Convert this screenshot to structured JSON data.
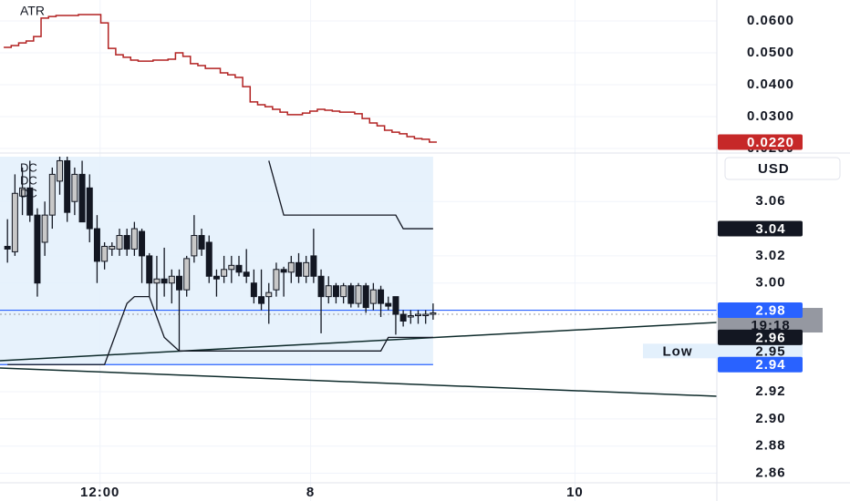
{
  "chart_data": [
    {
      "type": "step-line",
      "title": "ATR",
      "x": [
        0,
        1,
        2,
        3,
        4,
        5,
        6,
        7,
        8,
        9,
        10,
        11,
        12,
        13,
        14,
        15,
        16,
        17,
        18,
        19,
        20,
        21,
        22,
        23,
        24,
        25,
        26,
        27,
        28,
        29,
        30,
        31,
        32,
        33,
        34,
        35,
        36,
        37,
        38,
        39,
        40,
        41,
        42,
        43,
        44,
        45,
        46,
        47,
        48,
        49,
        50,
        51,
        52,
        53,
        54,
        55,
        56,
        57
      ],
      "series": [
        {
          "name": "ATR",
          "color": "#b22222",
          "values": [
            0.0517,
            0.0523,
            0.0531,
            0.0537,
            0.0551,
            0.0609,
            0.0614,
            0.0617,
            0.0617,
            0.0617,
            0.062,
            0.062,
            0.062,
            0.0594,
            0.0514,
            0.0494,
            0.0486,
            0.0477,
            0.0474,
            0.0474,
            0.0477,
            0.0477,
            0.048,
            0.05,
            0.0489,
            0.0466,
            0.046,
            0.0451,
            0.0451,
            0.0437,
            0.0431,
            0.0423,
            0.0394,
            0.0346,
            0.0337,
            0.0331,
            0.0323,
            0.0314,
            0.0306,
            0.0306,
            0.0311,
            0.0317,
            0.0323,
            0.032,
            0.0317,
            0.0314,
            0.0314,
            0.0309,
            0.0294,
            0.028,
            0.0271,
            0.0257,
            0.0251,
            0.0246,
            0.0237,
            0.0231,
            0.0229,
            0.022
          ]
        }
      ],
      "last_value_label": "0.0220",
      "label_color": "#c62828",
      "xlim": [
        -1,
        95
      ],
      "ylim": [
        0.01943,
        0.06657
      ],
      "yticks": [
        {
          "value": 0.06,
          "label": "0.0600"
        },
        {
          "value": 0.05,
          "label": "0.0500"
        },
        {
          "value": 0.04,
          "label": "0.0400"
        },
        {
          "value": 0.03,
          "label": "0.0300"
        },
        {
          "value": 0.02,
          "label": "0.0200"
        }
      ]
    },
    {
      "type": "candlestick",
      "x": [
        0,
        1,
        2,
        3,
        4,
        5,
        6,
        7,
        8,
        9,
        10,
        11,
        12,
        13,
        14,
        15,
        16,
        17,
        18,
        19,
        20,
        21,
        22,
        23,
        24,
        25,
        26,
        27,
        28,
        29,
        30,
        31,
        32,
        33,
        34,
        35,
        36,
        37,
        38,
        39,
        40,
        41,
        42,
        43,
        44,
        45,
        46,
        47,
        48,
        49,
        50,
        51,
        52,
        53,
        54,
        55,
        56,
        57
      ],
      "open": [
        3.027,
        3.023,
        3.064,
        3.07,
        3.05,
        3.03,
        3.05,
        3.075,
        3.09,
        3.06,
        3.08,
        3.07,
        3.04,
        3.016,
        3.025,
        3.025,
        3.035,
        3.025,
        3.038,
        3.02,
        3.0,
        3.003,
        3.0,
        3.005,
        2.995,
        3.02,
        3.035,
        3.03,
        3.005,
        3.005,
        3.01,
        3.013,
        3.008,
        3.0,
        2.99,
        2.99,
        2.995,
        3.01,
        3.008,
        3.015,
        3.005,
        3.02,
        3.005,
        2.99,
        2.998,
        2.99,
        2.998,
        2.985,
        2.998,
        2.985,
        2.995,
        2.985,
        2.99,
        2.977,
        2.975,
        2.976,
        2.976,
        2.977
      ],
      "high": [
        3.047,
        3.08,
        3.085,
        3.09,
        3.055,
        3.06,
        3.085,
        3.1,
        3.1,
        3.085,
        3.09,
        3.08,
        3.05,
        3.03,
        3.03,
        3.04,
        3.04,
        3.045,
        3.04,
        3.022,
        3.02,
        3.026,
        3.01,
        3.01,
        3.02,
        3.05,
        3.04,
        3.035,
        3.01,
        3.02,
        3.02,
        3.02,
        3.025,
        3.01,
        3.01,
        3.0,
        3.015,
        3.012,
        3.02,
        3.022,
        3.02,
        3.04,
        3.01,
        3.005,
        3.0,
        3.0,
        3.0,
        3.0,
        3.0,
        3.0,
        2.998,
        2.99,
        2.99,
        2.98,
        2.98,
        2.98,
        2.98,
        2.985
      ],
      "low": [
        3.015,
        3.02,
        3.05,
        3.045,
        2.99,
        3.02,
        3.04,
        3.065,
        3.045,
        3.05,
        3.045,
        3.03,
        3.0,
        3.01,
        3.02,
        3.02,
        3.02,
        3.02,
        3.0,
        2.99,
        2.98,
        2.99,
        2.985,
        2.95,
        2.99,
        3.015,
        3.02,
        3.0,
        2.99,
        3.0,
        3.0,
        3.005,
        3.0,
        2.985,
        2.98,
        2.97,
        2.99,
        2.99,
        3.0,
        3.0,
        3.0,
        3.0,
        2.963,
        2.985,
        2.985,
        2.985,
        2.982,
        2.982,
        2.978,
        2.98,
        2.975,
        2.98,
        2.962,
        2.968,
        2.97,
        2.97,
        2.97,
        2.973
      ],
      "close": [
        3.025,
        3.066,
        3.07,
        3.05,
        3.0,
        3.05,
        3.08,
        3.09,
        3.052,
        3.08,
        3.045,
        3.04,
        3.016,
        3.027,
        3.027,
        3.035,
        3.025,
        3.04,
        3.02,
        3.0,
        3.003,
        3.0,
        3.005,
        2.995,
        3.018,
        3.035,
        3.025,
        3.005,
        3.003,
        3.01,
        3.013,
        3.008,
        3.005,
        2.99,
        2.985,
        2.993,
        3.01,
        3.008,
        3.015,
        3.005,
        3.015,
        3.005,
        2.99,
        2.998,
        2.99,
        2.998,
        2.985,
        2.998,
        2.982,
        2.995,
        2.985,
        2.983,
        2.977,
        2.972,
        2.976,
        2.977,
        2.977,
        2.978
      ],
      "up_color": "#c8c8c8",
      "down_color": "#131722",
      "indicator_labels": [
        "DC",
        "DC",
        "DC"
      ],
      "series": [
        {
          "color": "#131722",
          "values": [
            null,
            null,
            null,
            null,
            null,
            null,
            null,
            null,
            null,
            null,
            null,
            null,
            null,
            null,
            null,
            null,
            null,
            null,
            null,
            null,
            null,
            null,
            null,
            null,
            null,
            null,
            null,
            null,
            null,
            null,
            null,
            null,
            null,
            null,
            null,
            3.09,
            3.07,
            3.05,
            3.05,
            3.05,
            3.05,
            3.05,
            3.05,
            3.05,
            3.05,
            3.05,
            3.05,
            3.05,
            3.05,
            3.05,
            3.05,
            3.05,
            3.05,
            3.04,
            3.04,
            3.04,
            3.04,
            3.04
          ]
        },
        {
          "color": "#131722",
          "values": [
            2.94,
            2.94,
            2.94,
            2.94,
            2.94,
            2.94,
            2.94,
            2.94,
            2.94,
            2.94,
            2.94,
            2.94,
            2.94,
            2.94,
            2.955,
            2.97,
            2.985,
            2.99,
            2.99,
            2.99,
            2.975,
            2.96,
            2.955,
            2.95,
            2.95,
            2.95,
            2.95,
            2.95,
            2.95,
            2.95,
            2.95,
            2.95,
            2.95,
            2.95,
            2.95,
            2.95,
            2.95,
            2.95,
            2.95,
            2.95,
            2.95,
            2.95,
            2.95,
            2.95,
            2.95,
            2.95,
            2.95,
            2.95,
            2.95,
            2.95,
            2.95,
            2.96,
            2.96,
            2.96,
            2.96,
            2.96,
            2.96,
            2.96
          ]
        }
      ],
      "levels": [
        2.98,
        2.94
      ],
      "level_color": "#2962ff",
      "last_price": 2.977,
      "last_price_label": "2.98",
      "countdown": "19:18",
      "low_label": "Low",
      "low_value": 2.95,
      "currency": "USD",
      "xlim": [
        -1,
        95
      ],
      "ylim": [
        2.853,
        3.093
      ],
      "xticks": [
        {
          "value": 12.4,
          "label": "12:00"
        },
        {
          "value": 40.6,
          "label": "8"
        },
        {
          "value": 76,
          "label": "10"
        }
      ],
      "yticks": [
        3.06,
        3.02,
        {
          "value": 3.0,
          "label": "3.00"
        },
        2.92,
        {
          "value": 2.9,
          "label": "2.90"
        },
        2.88,
        2.86
      ]
    }
  ]
}
